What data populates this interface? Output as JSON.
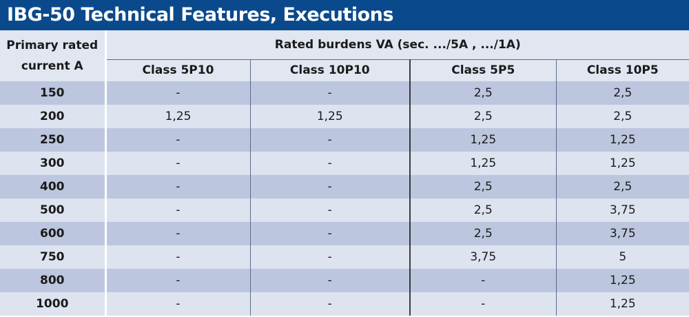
{
  "title": "IBG-50 Technical Features, Executions",
  "header": {
    "primary_line1": "Primary rated",
    "primary_line2": "current  A",
    "rated_burdens": "Rated burdens VA  (sec. .../5A , .../1A)",
    "classes": [
      "Class 5P10",
      "Class 10P10",
      "Class 5P5",
      "Class 10P5"
    ]
  },
  "rows": [
    {
      "current": "150",
      "values": [
        "-",
        "-",
        "2,5",
        "2,5"
      ]
    },
    {
      "current": "200",
      "values": [
        "1,25",
        "1,25",
        "2,5",
        "2,5"
      ]
    },
    {
      "current": "250",
      "values": [
        "-",
        "-",
        "1,25",
        "1,25"
      ]
    },
    {
      "current": "300",
      "values": [
        "-",
        "-",
        "1,25",
        "1,25"
      ]
    },
    {
      "current": "400",
      "values": [
        "-",
        "-",
        "2,5",
        "2,5"
      ]
    },
    {
      "current": "500",
      "values": [
        "-",
        "-",
        "2,5",
        "3,75"
      ]
    },
    {
      "current": "600",
      "values": [
        "-",
        "-",
        "2,5",
        "3,75"
      ]
    },
    {
      "current": "750",
      "values": [
        "-",
        "-",
        "3,75",
        "5"
      ]
    },
    {
      "current": "800",
      "values": [
        "-",
        "-",
        "-",
        "1,25"
      ]
    },
    {
      "current": "1000",
      "values": [
        "-",
        "-",
        "-",
        "1,25"
      ]
    }
  ],
  "colors": {
    "title_bg": "#0a4a8c",
    "title_text": "#ffffff",
    "row_dark": "#bcc6de",
    "row_light": "#dde3ef",
    "header_bg": "#e1e6f1"
  }
}
